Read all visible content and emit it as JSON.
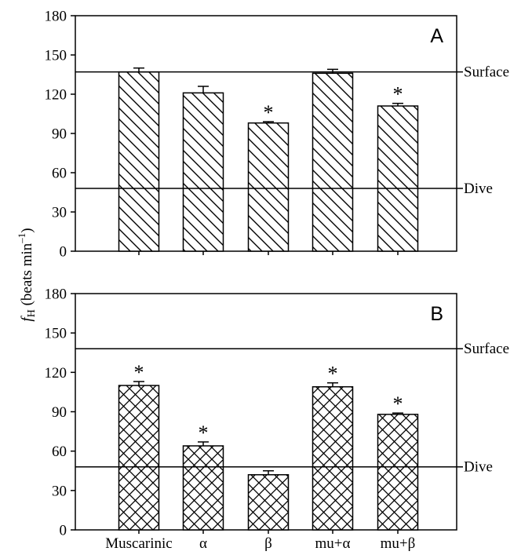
{
  "chart_data": [
    {
      "type": "bar",
      "panel_label": "A",
      "categories": [
        "Muscarinic",
        "α",
        "β",
        "mu+α",
        "mu+β"
      ],
      "values": [
        137,
        121,
        98,
        136,
        111
      ],
      "errors": [
        3,
        5,
        1,
        3,
        2
      ],
      "significant": [
        false,
        false,
        true,
        false,
        true
      ],
      "significance_marker": "*",
      "hatch": "diagonal",
      "reference_lines": [
        {
          "label": "Surface",
          "value": 137
        },
        {
          "label": "Dive",
          "value": 48
        }
      ],
      "ylim": [
        0,
        180
      ],
      "yticks": [
        0,
        30,
        60,
        90,
        120,
        150,
        180
      ],
      "yticklabels": [
        "0",
        "30",
        "60",
        "90",
        "120",
        "150",
        "180"
      ]
    },
    {
      "type": "bar",
      "panel_label": "B",
      "categories": [
        "Muscarinic",
        "α",
        "β",
        "mu+α",
        "mu+β"
      ],
      "values": [
        110,
        64,
        42,
        109,
        88
      ],
      "errors": [
        3,
        3,
        3,
        3,
        1
      ],
      "significant": [
        true,
        true,
        false,
        true,
        true
      ],
      "significance_marker": "*",
      "hatch": "crosshatch",
      "reference_lines": [
        {
          "label": "Surface",
          "value": 138
        },
        {
          "label": "Dive",
          "value": 48
        }
      ],
      "ylim": [
        0,
        180
      ],
      "yticks": [
        0,
        30,
        60,
        90,
        120,
        150,
        180
      ],
      "yticklabels": [
        "0",
        "30",
        "60",
        "90",
        "120",
        "150",
        "180"
      ]
    }
  ],
  "ylabel": {
    "symbol": "f",
    "subscript": "H",
    "text": " (beats min",
    "superscript": "–1",
    "close": ")"
  }
}
